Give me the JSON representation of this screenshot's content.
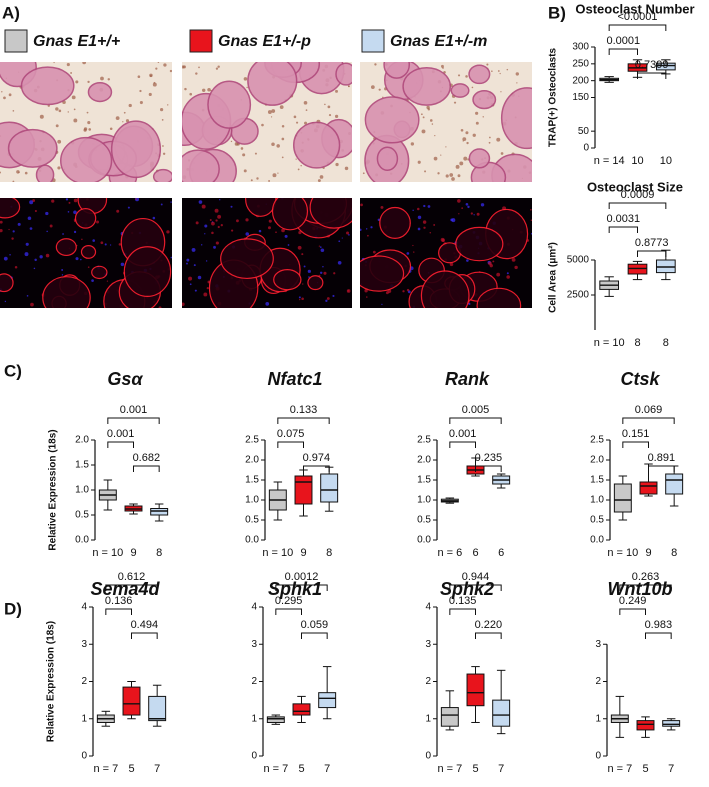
{
  "panel_labels": [
    "A)",
    "B)",
    "C)",
    "D)"
  ],
  "legend": [
    {
      "label": "Gnas E1+/+",
      "color": "#c8c8c8"
    },
    {
      "label": "Gnas E1+/-p",
      "color": "#e8141c"
    },
    {
      "label": "Gnas E1+/-m",
      "color": "#c5daf0"
    }
  ],
  "chart_data": [
    {
      "type": "box",
      "title": "Osteoclast  Number",
      "italic_title": false,
      "ylabel": "TRAP(+) Osteoclasts",
      "categories": [
        "n = 14",
        "10",
        "10"
      ],
      "colors": [
        "#c8c8c8",
        "#e8141c",
        "#c5daf0"
      ],
      "ylim": [
        0,
        300
      ],
      "yticks": [
        0,
        50,
        150,
        200,
        250,
        300
      ],
      "boxes": [
        {
          "min": 195,
          "q1": 200,
          "median": 203,
          "q3": 207,
          "max": 212
        },
        {
          "min": 210,
          "q1": 228,
          "median": 238,
          "q3": 250,
          "max": 262
        },
        {
          "min": 220,
          "q1": 232,
          "median": 245,
          "q3": 252,
          "max": 262
        }
      ],
      "comparisons": [
        "<0.0001",
        "0.0001",
        "0.7399"
      ]
    },
    {
      "type": "box",
      "title": "Osteoclast  Size",
      "italic_title": false,
      "ylabel": "Cell Area (μm²)",
      "categories": [
        "n = 10",
        "8",
        "8"
      ],
      "colors": [
        "#c8c8c8",
        "#e8141c",
        "#c5daf0"
      ],
      "ylim": [
        0,
        7500
      ],
      "yticks": [
        2500,
        5000
      ],
      "boxes": [
        {
          "min": 2400,
          "q1": 2900,
          "median": 3200,
          "q3": 3500,
          "max": 3800
        },
        {
          "min": 3600,
          "q1": 4000,
          "median": 4400,
          "q3": 4700,
          "max": 4900
        },
        {
          "min": 3600,
          "q1": 4100,
          "median": 4500,
          "q3": 5000,
          "max": 5700
        }
      ],
      "comparisons": [
        "0.0009",
        "0.0031",
        "0.8773"
      ]
    },
    {
      "type": "box",
      "title": "Gsα",
      "italic_title": true,
      "ylabel": "Relative Expression (18s)",
      "categories": [
        "n = 10",
        "9",
        "8"
      ],
      "colors": [
        "#c8c8c8",
        "#e8141c",
        "#c5daf0"
      ],
      "ylim": [
        0,
        2
      ],
      "yticks": [
        {
          "value": 0,
          "label": "0.0"
        },
        {
          "value": 0.5,
          "label": "0.5"
        },
        {
          "value": 1,
          "label": "1.0"
        },
        {
          "value": 1.5,
          "label": "1.5"
        },
        {
          "value": 2,
          "label": "2.0"
        }
      ],
      "boxes": [
        {
          "min": 0.6,
          "q1": 0.8,
          "median": 0.9,
          "q3": 1.0,
          "max": 1.2
        },
        {
          "min": 0.52,
          "q1": 0.58,
          "median": 0.62,
          "q3": 0.68,
          "max": 0.72
        },
        {
          "min": 0.38,
          "q1": 0.5,
          "median": 0.58,
          "q3": 0.63,
          "max": 0.72
        }
      ],
      "comparisons": [
        "0.001",
        "0.001",
        "0.682"
      ]
    },
    {
      "type": "box",
      "title": "Nfatc1",
      "italic_title": true,
      "categories": [
        "n = 10",
        "9",
        "8"
      ],
      "colors": [
        "#c8c8c8",
        "#e8141c",
        "#c5daf0"
      ],
      "ylim": [
        0,
        2.5
      ],
      "yticks": [
        {
          "value": 0,
          "label": "0.0"
        },
        {
          "value": 0.5,
          "label": "0.5"
        },
        {
          "value": 1,
          "label": "1.0"
        },
        {
          "value": 1.5,
          "label": "1.5"
        },
        {
          "value": 2,
          "label": "2.0"
        },
        2.5
      ],
      "boxes": [
        {
          "min": 0.5,
          "q1": 0.75,
          "median": 1.0,
          "q3": 1.25,
          "max": 1.45
        },
        {
          "min": 0.6,
          "q1": 0.9,
          "median": 1.45,
          "q3": 1.6,
          "max": 1.75
        },
        {
          "min": 0.72,
          "q1": 0.95,
          "median": 1.25,
          "q3": 1.65,
          "max": 1.82
        }
      ],
      "comparisons": [
        "0.133",
        "0.075",
        "0.974"
      ]
    },
    {
      "type": "box",
      "title": "Rank",
      "italic_title": true,
      "categories": [
        "n = 6",
        "6",
        "6"
      ],
      "colors": [
        "#c8c8c8",
        "#e8141c",
        "#c5daf0"
      ],
      "ylim": [
        0,
        2.5
      ],
      "yticks": [
        {
          "value": 0,
          "label": "0.0"
        },
        {
          "value": 0.5,
          "label": "0.5"
        },
        {
          "value": 1,
          "label": "1.0"
        },
        {
          "value": 1.5,
          "label": "1.5"
        },
        {
          "value": 2,
          "label": "2.0"
        },
        2.5
      ],
      "boxes": [
        {
          "min": 0.92,
          "q1": 0.95,
          "median": 0.98,
          "q3": 1.02,
          "max": 1.05
        },
        {
          "min": 1.6,
          "q1": 1.65,
          "median": 1.75,
          "q3": 1.85,
          "max": 2.05
        },
        {
          "min": 1.3,
          "q1": 1.4,
          "median": 1.5,
          "q3": 1.6,
          "max": 1.65
        }
      ],
      "comparisons": [
        "0.005",
        "0.001",
        "0.235"
      ]
    },
    {
      "type": "box",
      "title": "Ctsk",
      "italic_title": true,
      "categories": [
        "n = 10",
        "9",
        "8"
      ],
      "colors": [
        "#c8c8c8",
        "#e8141c",
        "#c5daf0"
      ],
      "ylim": [
        0,
        2.5
      ],
      "yticks": [
        {
          "value": 0,
          "label": "0.0"
        },
        {
          "value": 0.5,
          "label": "0.5"
        },
        {
          "value": 1,
          "label": "1.0"
        },
        {
          "value": 1.5,
          "label": "1.5"
        },
        {
          "value": 2,
          "label": "2.0"
        },
        2.5
      ],
      "boxes": [
        {
          "min": 0.5,
          "q1": 0.7,
          "median": 1.0,
          "q3": 1.4,
          "max": 1.6
        },
        {
          "min": 1.1,
          "q1": 1.15,
          "median": 1.35,
          "q3": 1.45,
          "max": 1.9
        },
        {
          "min": 0.85,
          "q1": 1.15,
          "median": 1.5,
          "q3": 1.65,
          "max": 1.85
        }
      ],
      "comparisons": [
        "0.069",
        "0.151",
        "0.891"
      ]
    },
    {
      "type": "box",
      "title": "Sema4d",
      "italic_title": true,
      "ylabel": "Relative Expression (18s)",
      "categories": [
        "n = 7",
        "5",
        "7"
      ],
      "colors": [
        "#c8c8c8",
        "#e8141c",
        "#c5daf0"
      ],
      "ylim": [
        0,
        4
      ],
      "yticks": [
        0,
        1,
        2,
        3,
        4
      ],
      "boxes": [
        {
          "min": 0.8,
          "q1": 0.9,
          "median": 1.0,
          "q3": 1.1,
          "max": 1.2
        },
        {
          "min": 1.0,
          "q1": 1.1,
          "median": 1.4,
          "q3": 1.85,
          "max": 2.0
        },
        {
          "min": 0.8,
          "q1": 0.95,
          "median": 1.0,
          "q3": 1.6,
          "max": 1.9
        }
      ],
      "comparisons": [
        "0.612",
        "0.136",
        "0.494"
      ]
    },
    {
      "type": "box",
      "title": "Sphk1",
      "italic_title": true,
      "categories": [
        "n = 7",
        "5",
        "7"
      ],
      "colors": [
        "#c8c8c8",
        "#e8141c",
        "#c5daf0"
      ],
      "ylim": [
        0,
        4
      ],
      "yticks": [
        0,
        1,
        2,
        3,
        4
      ],
      "boxes": [
        {
          "min": 0.85,
          "q1": 0.9,
          "median": 1.0,
          "q3": 1.05,
          "max": 1.1
        },
        {
          "min": 0.9,
          "q1": 1.1,
          "median": 1.2,
          "q3": 1.4,
          "max": 1.6
        },
        {
          "min": 1.0,
          "q1": 1.3,
          "median": 1.55,
          "q3": 1.7,
          "max": 2.4
        }
      ],
      "comparisons": [
        "0.0012",
        "0.295",
        "0.059"
      ]
    },
    {
      "type": "box",
      "title": "Sphk2",
      "italic_title": true,
      "categories": [
        "n = 7",
        "5",
        "7"
      ],
      "colors": [
        "#c8c8c8",
        "#e8141c",
        "#c5daf0"
      ],
      "ylim": [
        0,
        4
      ],
      "yticks": [
        0,
        1,
        2,
        3,
        4
      ],
      "boxes": [
        {
          "min": 0.7,
          "q1": 0.8,
          "median": 1.1,
          "q3": 1.3,
          "max": 1.75
        },
        {
          "min": 0.9,
          "q1": 1.35,
          "median": 1.7,
          "q3": 2.2,
          "max": 2.4
        },
        {
          "min": 0.6,
          "q1": 0.8,
          "median": 1.1,
          "q3": 1.5,
          "max": 2.3
        }
      ],
      "comparisons": [
        "0.944",
        "0.135",
        "0.220"
      ]
    },
    {
      "type": "box",
      "title": "Wnt10b",
      "italic_title": true,
      "categories": [
        "n = 7",
        "5",
        "7"
      ],
      "colors": [
        "#c8c8c8",
        "#e8141c",
        "#c5daf0"
      ],
      "ylim": [
        0,
        4
      ],
      "yticks": [
        0,
        1,
        2,
        3
      ],
      "boxes": [
        {
          "min": 0.5,
          "q1": 0.9,
          "median": 1.0,
          "q3": 1.1,
          "max": 1.6
        },
        {
          "min": 0.5,
          "q1": 0.7,
          "median": 0.85,
          "q3": 0.95,
          "max": 1.05
        },
        {
          "min": 0.7,
          "q1": 0.8,
          "median": 0.85,
          "q3": 0.95,
          "max": 1.0
        }
      ],
      "comparisons": [
        "0.263",
        "0.249",
        "0.983"
      ]
    }
  ]
}
